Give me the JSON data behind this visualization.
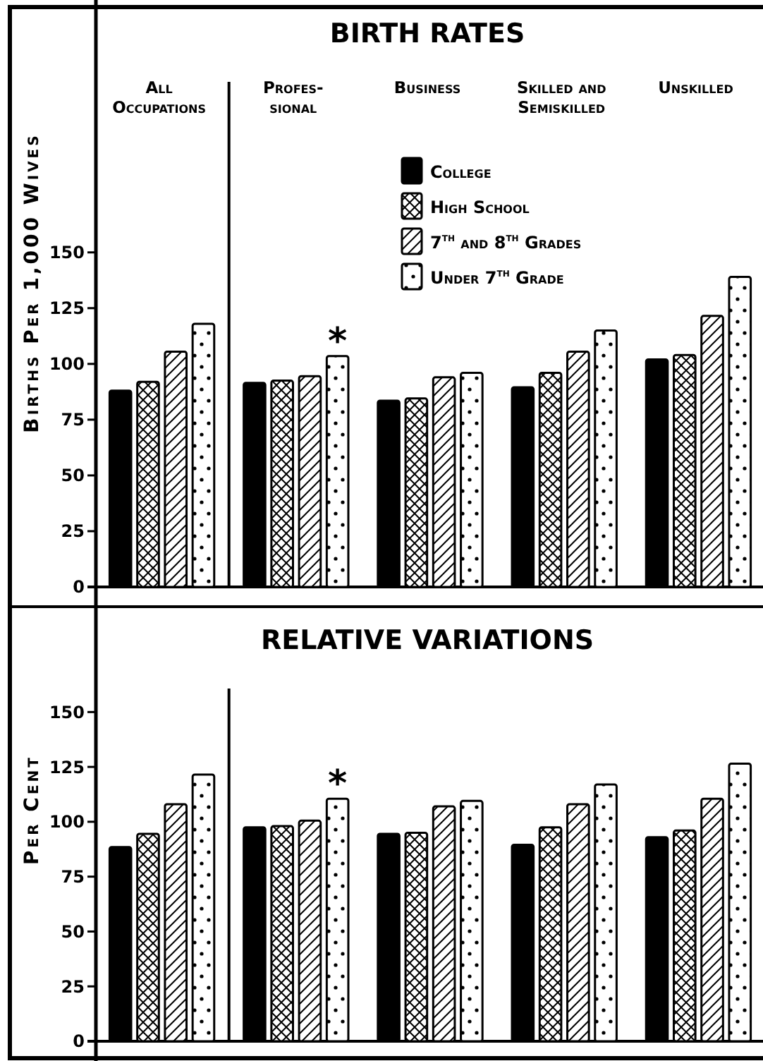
{
  "chart_data": [
    {
      "type": "bar",
      "title": "BIRTH RATES",
      "ylabel": "Births Per 1,000 Wives",
      "categories": [
        "All\nOccupations",
        "Profes-\nsional",
        "Business",
        "Skilled and\nSemiskilled",
        "Unskilled"
      ],
      "series": [
        {
          "name": "College",
          "color": "#000000",
          "values": [
            88,
            91.5,
            83.5,
            89.5,
            102
          ]
        },
        {
          "name": "High School",
          "color": "#ffffff",
          "values": [
            92,
            92.5,
            84.5,
            96,
            104
          ]
        },
        {
          "name": "7$^{th}$ and 8$^{th}$ Grades",
          "color": "#ffffff",
          "values": [
            105.5,
            94.5,
            94,
            105.5,
            121.5
          ]
        },
        {
          "name": "Under 7$^{th}$ Grade",
          "color": "#ffffff",
          "values": [
            118,
            103.5,
            96,
            115,
            139
          ]
        }
      ],
      "ylim": [
        0,
        260
      ],
      "yticks": [
        0,
        25,
        50,
        75,
        100,
        125,
        150
      ],
      "legend": "top",
      "annotations": [
        "*"
      ]
    },
    {
      "type": "bar",
      "title": "RELATIVE VARIATIONS",
      "ylabel": "Per Cent",
      "categories": [
        null,
        null,
        null,
        null,
        null
      ],
      "series": [
        {
          "color": "#000000",
          "values": [
            88.5,
            97.5,
            94.5,
            89.5,
            93
          ]
        },
        {
          "color": "#ffffff",
          "values": [
            94.5,
            98,
            95,
            97.5,
            96
          ]
        },
        {
          "color": "#ffffff",
          "values": [
            108,
            100.5,
            107,
            108,
            110.5
          ]
        },
        {
          "color": "#ffffff",
          "values": [
            121.5,
            110.5,
            109.5,
            117,
            126.5
          ]
        }
      ],
      "ylim": [
        0,
        198
      ],
      "yticks": [
        0,
        25,
        50,
        75,
        100,
        125,
        150
      ],
      "annotations": [
        "*"
      ]
    }
  ]
}
